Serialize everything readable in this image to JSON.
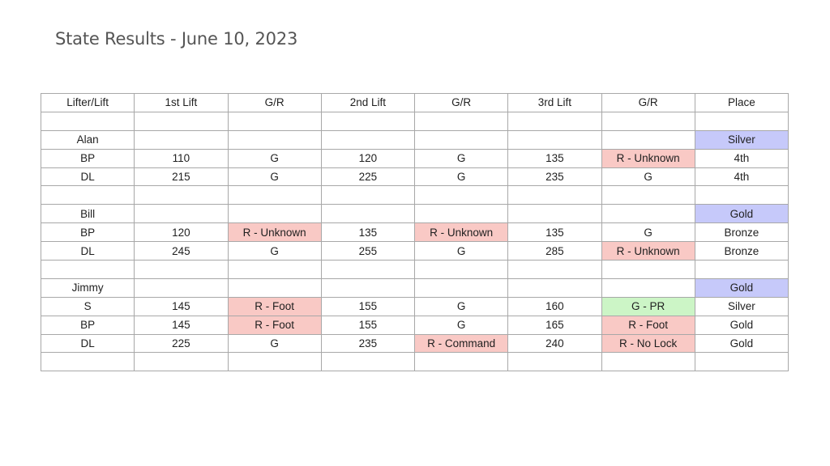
{
  "title": "State Results - June 10, 2023",
  "colors": {
    "red": "#f9c9c5",
    "green": "#ccf5c6",
    "blue": "#c6c9fa"
  },
  "table": {
    "headers": [
      "Lifter/Lift",
      "1st Lift",
      "G/R",
      "2nd Lift",
      "G/R",
      "3rd Lift",
      "G/R",
      "Place"
    ],
    "rows": [
      {
        "cells": [
          "",
          "",
          "",
          "",
          "",
          "",
          "",
          ""
        ]
      },
      {
        "cells": [
          "Alan",
          "",
          "",
          "",
          "",
          "",
          "",
          "Silver"
        ],
        "highlights": {
          "7": "blue"
        }
      },
      {
        "cells": [
          "BP",
          "110",
          "G",
          "120",
          "G",
          "135",
          "R - Unknown",
          "4th"
        ],
        "highlights": {
          "6": "red"
        }
      },
      {
        "cells": [
          "DL",
          "215",
          "G",
          "225",
          "G",
          "235",
          "G",
          "4th"
        ]
      },
      {
        "cells": [
          "",
          "",
          "",
          "",
          "",
          "",
          "",
          ""
        ]
      },
      {
        "cells": [
          "Bill",
          "",
          "",
          "",
          "",
          "",
          "",
          "Gold"
        ],
        "highlights": {
          "7": "blue"
        }
      },
      {
        "cells": [
          "BP",
          "120",
          "R - Unknown",
          "135",
          "R - Unknown",
          "135",
          "G",
          "Bronze"
        ],
        "highlights": {
          "2": "red",
          "4": "red"
        }
      },
      {
        "cells": [
          "DL",
          "245",
          "G",
          "255",
          "G",
          "285",
          "R - Unknown",
          "Bronze"
        ],
        "highlights": {
          "6": "red"
        }
      },
      {
        "cells": [
          "",
          "",
          "",
          "",
          "",
          "",
          "",
          ""
        ]
      },
      {
        "cells": [
          "Jimmy",
          "",
          "",
          "",
          "",
          "",
          "",
          "Gold"
        ],
        "highlights": {
          "7": "blue"
        }
      },
      {
        "cells": [
          "S",
          "145",
          "R - Foot",
          "155",
          "G",
          "160",
          "G - PR",
          "Silver"
        ],
        "highlights": {
          "2": "red",
          "6": "green"
        }
      },
      {
        "cells": [
          "BP",
          "145",
          "R - Foot",
          "155",
          "G",
          "165",
          "R - Foot",
          "Gold"
        ],
        "highlights": {
          "2": "red",
          "6": "red"
        }
      },
      {
        "cells": [
          "DL",
          "225",
          "G",
          "235",
          "R - Command",
          "240",
          "R - No Lock",
          "Gold"
        ],
        "highlights": {
          "4": "red",
          "6": "red"
        }
      },
      {
        "cells": [
          "",
          "",
          "",
          "",
          "",
          "",
          "",
          ""
        ]
      }
    ]
  }
}
